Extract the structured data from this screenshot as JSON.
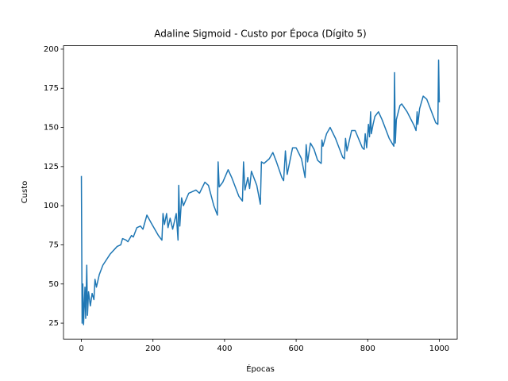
{
  "chart_data": {
    "type": "line",
    "title": "Adaline Sigmoid - Custo por Época (Dígito 5)",
    "x_label": "Épocas",
    "y_label": "Custo",
    "xlim": [
      -50,
      1050
    ],
    "ylim": [
      14.8,
      202.2
    ],
    "xticks": [
      0,
      200,
      400,
      600,
      800,
      1000
    ],
    "yticks": [
      25,
      50,
      75,
      100,
      125,
      150,
      175,
      200
    ],
    "x": [
      0,
      2,
      4,
      6,
      10,
      12,
      15,
      17,
      20,
      25,
      30,
      35,
      38,
      42,
      50,
      60,
      80,
      100,
      110,
      115,
      125,
      130,
      140,
      145,
      155,
      165,
      172,
      183,
      195,
      215,
      225,
      228,
      232,
      238,
      242,
      248,
      255,
      265,
      270,
      272,
      275,
      280,
      285,
      300,
      320,
      330,
      345,
      355,
      370,
      380,
      382,
      385,
      395,
      410,
      420,
      440,
      450,
      453,
      457,
      465,
      470,
      475,
      490,
      500,
      503,
      510,
      525,
      535,
      545,
      560,
      565,
      570,
      575,
      590,
      600,
      615,
      625,
      628,
      632,
      640,
      650,
      660,
      670,
      672,
      675,
      685,
      695,
      710,
      730,
      735,
      738,
      742,
      755,
      765,
      785,
      790,
      793,
      797,
      802,
      805,
      808,
      810,
      815,
      820,
      830,
      840,
      860,
      873,
      875,
      877,
      880,
      890,
      895,
      910,
      930,
      935,
      938,
      940,
      945,
      955,
      965,
      990,
      996,
      998,
      1000
    ],
    "series": [
      {
        "name": "Custo",
        "color": "#1f77b4",
        "values": [
          119,
          25,
          50,
          24,
          48,
          28,
          62,
          30,
          45,
          36,
          44,
          40,
          53,
          48,
          56,
          62,
          69,
          74,
          75,
          79,
          78,
          77,
          81,
          80,
          86,
          87,
          85,
          94,
          89,
          81,
          78,
          95,
          88,
          95,
          86,
          92,
          85,
          95,
          78,
          113,
          87,
          105,
          100,
          108,
          110,
          108,
          115,
          113,
          100,
          94,
          128,
          112,
          115,
          123,
          118,
          106,
          103,
          128,
          110,
          118,
          111,
          122,
          113,
          101,
          128,
          127,
          130,
          134,
          128,
          118,
          116,
          135,
          120,
          137,
          137,
          130,
          118,
          139,
          128,
          140,
          136,
          129,
          127,
          142,
          138,
          146,
          150,
          143,
          131,
          130,
          143,
          135,
          148,
          148,
          137,
          136,
          146,
          137,
          152,
          144,
          160,
          146,
          152,
          157,
          160,
          155,
          143,
          138,
          185,
          140,
          155,
          164,
          165,
          160,
          151,
          148,
          160,
          152,
          162,
          170,
          168,
          153,
          152,
          193,
          166
        ]
      }
    ]
  }
}
